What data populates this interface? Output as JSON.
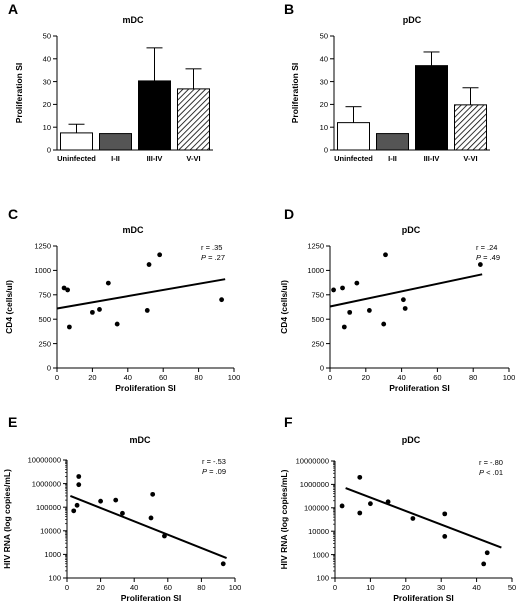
{
  "chart_data": [
    {
      "panel": "A",
      "type": "bar",
      "title": "mDC",
      "ylabel": "Proliferation SI",
      "xlabel": "",
      "ylim": [
        0,
        50
      ],
      "yticks": [
        0,
        10,
        20,
        30,
        40,
        50
      ],
      "categories": [
        "Uninfected",
        "I-II",
        "III-IV",
        "V-VI"
      ],
      "values": [
        7.5,
        7.2,
        30.3,
        26.8
      ],
      "errors": [
        3.8,
        0,
        14.5,
        8.8
      ],
      "fills": [
        "white",
        "gray",
        "black",
        "hatched"
      ],
      "colors": {
        "white": "#ffffff",
        "gray": "#555555",
        "black": "#000000"
      }
    },
    {
      "panel": "B",
      "type": "bar",
      "title": "pDC",
      "ylabel": "Proliferation SI",
      "xlabel": "",
      "ylim": [
        0,
        50
      ],
      "yticks": [
        0,
        10,
        20,
        30,
        40,
        50
      ],
      "categories": [
        "Uninfected",
        "I-II",
        "III-IV",
        "V-VI"
      ],
      "values": [
        12,
        7.2,
        37,
        19.8
      ],
      "errors": [
        7,
        0,
        6,
        7.5
      ],
      "fills": [
        "white",
        "gray",
        "black",
        "hatched"
      ],
      "colors": {
        "white": "#ffffff",
        "gray": "#555555",
        "black": "#000000"
      }
    },
    {
      "panel": "C",
      "type": "scatter",
      "title": "mDC",
      "xlabel": "Proliferation SI",
      "ylabel": "CD4 (cells/ul)",
      "xlim": [
        0,
        100
      ],
      "ylim": [
        0,
        1250
      ],
      "xticks": [
        0,
        20,
        40,
        60,
        80,
        100
      ],
      "yticks": [
        0,
        250,
        500,
        750,
        1000,
        1250
      ],
      "y_log": false,
      "points": [
        [
          4,
          820
        ],
        [
          6,
          800
        ],
        [
          7,
          420
        ],
        [
          20,
          570
        ],
        [
          24,
          600
        ],
        [
          29,
          870
        ],
        [
          34,
          450
        ],
        [
          51,
          590
        ],
        [
          52,
          1060
        ],
        [
          58,
          1160
        ],
        [
          93,
          700
        ]
      ],
      "fit_line": [
        [
          0,
          610
        ],
        [
          95,
          910
        ]
      ],
      "stats": {
        "r": "r = .35",
        "p_label": "P",
        "p_value": " = .27"
      }
    },
    {
      "panel": "D",
      "type": "scatter",
      "title": "pDC",
      "xlabel": "Proliferation SI",
      "ylabel": "CD4 (cells/ul)",
      "xlim": [
        0,
        100
      ],
      "ylim": [
        0,
        1250
      ],
      "xticks": [
        0,
        20,
        40,
        60,
        80,
        100
      ],
      "yticks": [
        0,
        250,
        500,
        750,
        1000,
        1250
      ],
      "y_log": false,
      "points": [
        [
          2,
          800
        ],
        [
          7,
          820
        ],
        [
          8,
          420
        ],
        [
          11,
          570
        ],
        [
          15,
          870
        ],
        [
          22,
          590
        ],
        [
          30,
          450
        ],
        [
          31,
          1160
        ],
        [
          41,
          700
        ],
        [
          42,
          610
        ],
        [
          84,
          1060
        ]
      ],
      "fit_line": [
        [
          0,
          630
        ],
        [
          85,
          960
        ]
      ],
      "stats": {
        "r": "r = .24",
        "p_label": "P",
        "p_value": " = .49"
      }
    },
    {
      "panel": "E",
      "type": "scatter",
      "title": "mDC",
      "xlabel": "Proliferation SI",
      "ylabel": "HIV RNA (log copies/mL)",
      "xlim": [
        0,
        100
      ],
      "ylim": [
        100,
        10000000
      ],
      "xticks": [
        0,
        20,
        40,
        60,
        80,
        100
      ],
      "yticks": [
        100,
        1000,
        10000,
        100000,
        1000000,
        10000000
      ],
      "ytick_labels": [
        "100",
        "1000",
        "10000",
        "100000",
        "1000000",
        "10000000"
      ],
      "y_log": true,
      "points": [
        [
          4,
          70000
        ],
        [
          6,
          120000
        ],
        [
          7,
          900000
        ],
        [
          7,
          2000000
        ],
        [
          20,
          180000
        ],
        [
          29,
          200000
        ],
        [
          33,
          55000
        ],
        [
          50,
          35000
        ],
        [
          51,
          350000
        ],
        [
          58,
          6000
        ],
        [
          93,
          400
        ]
      ],
      "fit_line": [
        [
          2,
          300000
        ],
        [
          95,
          700
        ]
      ],
      "stats": {
        "r": "r = -.53",
        "p_label": "P",
        "p_value": " = .09"
      }
    },
    {
      "panel": "F",
      "type": "scatter",
      "title": "pDC",
      "xlabel": "Proliferation SI",
      "ylabel": "HIV RNA (log copies/mL)",
      "xlim": [
        0,
        50
      ],
      "ylim": [
        100,
        10000000
      ],
      "xticks": [
        0,
        10,
        20,
        30,
        40,
        50
      ],
      "yticks": [
        100,
        1000,
        10000,
        100000,
        1000000,
        10000000
      ],
      "ytick_labels": [
        "100",
        "1000",
        "10000",
        "100000",
        "1000000",
        "10000000"
      ],
      "y_log": true,
      "points": [
        [
          2,
          120000
        ],
        [
          7,
          60000
        ],
        [
          7,
          2000000
        ],
        [
          10,
          150000
        ],
        [
          15,
          180000
        ],
        [
          22,
          35000
        ],
        [
          31,
          55000
        ],
        [
          31,
          6000
        ],
        [
          42,
          400
        ],
        [
          43,
          1200
        ]
      ],
      "fit_line": [
        [
          3,
          700000
        ],
        [
          47,
          2000
        ]
      ],
      "stats": {
        "r": "r = -.80",
        "p_label": "P",
        "p_value": " < .01"
      }
    }
  ]
}
